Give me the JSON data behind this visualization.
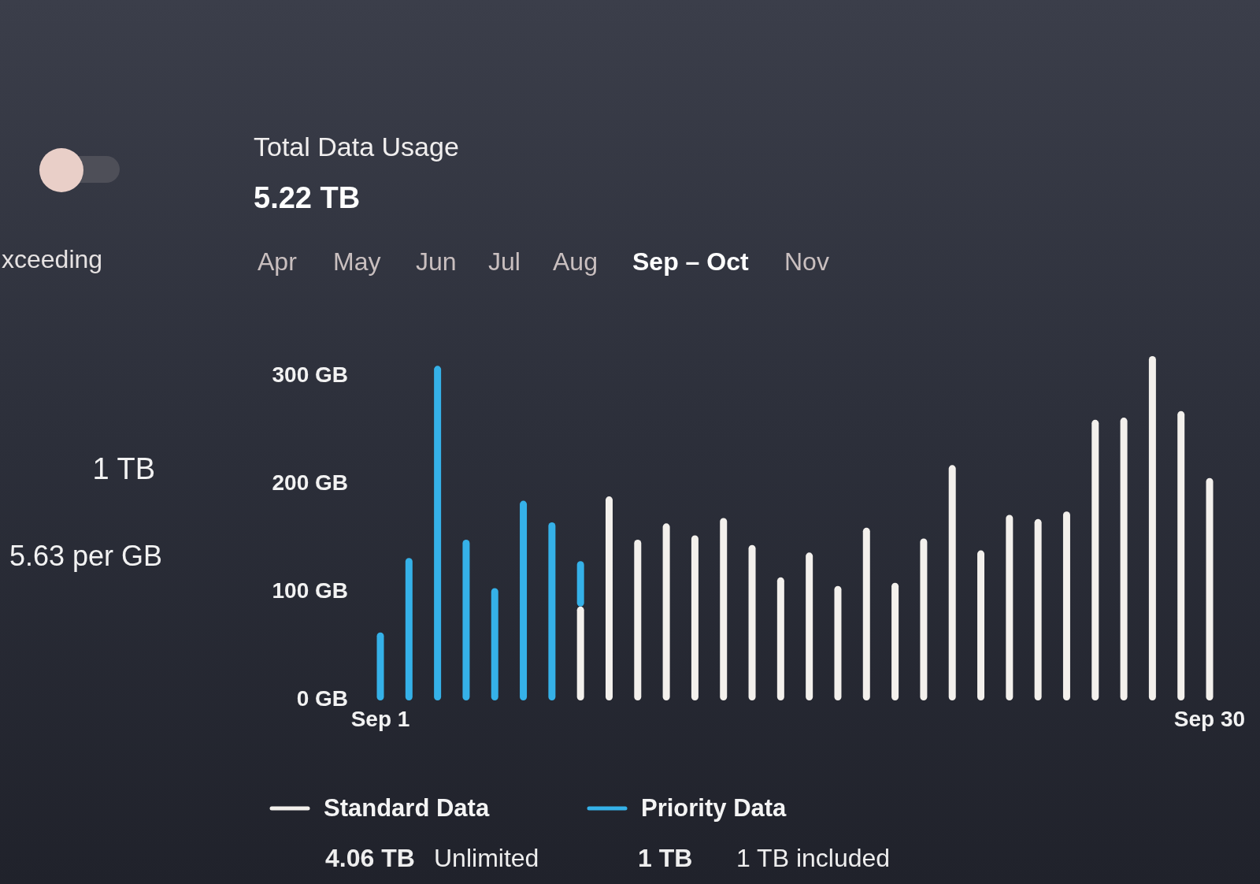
{
  "chart_data": {
    "type": "bar",
    "title": "Total Data Usage",
    "subtitle": "5.22 TB",
    "categories": [
      "Sep 1",
      null,
      null,
      null,
      null,
      null,
      null,
      null,
      null,
      null,
      null,
      null,
      null,
      null,
      null,
      null,
      null,
      null,
      null,
      null,
      null,
      null,
      null,
      null,
      null,
      null,
      null,
      null,
      null,
      "Sep 30"
    ],
    "series": [
      {
        "name": "Standard Data",
        "color": "#f3f0ec",
        "values": [
          null,
          null,
          null,
          null,
          null,
          null,
          null,
          87,
          189,
          149,
          164,
          153,
          169,
          144,
          114,
          137,
          106,
          160,
          109,
          150,
          218,
          139,
          172,
          168,
          175,
          260,
          262,
          319,
          268,
          206
        ]
      },
      {
        "name": "Priority Data",
        "color": "#35b1e8",
        "values": [
          63,
          132,
          310,
          149,
          104,
          185,
          165,
          42,
          null,
          null,
          null,
          null,
          null,
          null,
          null,
          null,
          null,
          null,
          null,
          null,
          null,
          null,
          null,
          null,
          null,
          null,
          null,
          null,
          null,
          null
        ]
      }
    ],
    "stacked": true,
    "ylim": [
      0,
      319
    ],
    "yticks": [
      {
        "value": 0,
        "label": "0 GB"
      },
      {
        "value": 100,
        "label": "100 GB"
      },
      {
        "value": 200,
        "label": "200 GB"
      },
      {
        "value": 300,
        "label": "300 GB"
      }
    ],
    "legend": "bottom",
    "annotations": [
      "Apr",
      "May",
      "Jun",
      "Jul",
      "Aug",
      "Sep – Oct",
      "Nov",
      "xceeding",
      "1 TB",
      "5.63 per GB",
      "4.06 TB",
      "Unlimited",
      "1 TB",
      "1 TB included"
    ]
  }
}
